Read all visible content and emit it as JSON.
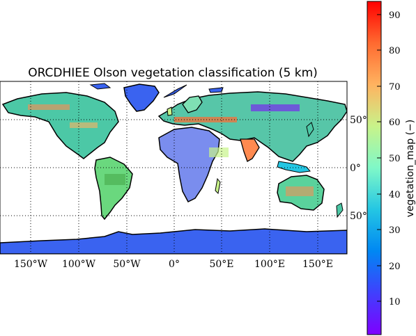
{
  "title": "ORCDHIEE Olson vegetation classification (5 km)",
  "map": {
    "projection": "cylindrical",
    "lon_range": [
      -180,
      180
    ],
    "lat_range": [
      -90,
      90
    ],
    "ocean_color": "#ffffff",
    "coastline_color": "#000000",
    "ice_color": "#3a63f0",
    "lon_ticks": [
      {
        "value": -150,
        "label": "150°W"
      },
      {
        "value": -100,
        "label": "100°W"
      },
      {
        "value": -50,
        "label": "50°W"
      },
      {
        "value": 0,
        "label": "0°"
      },
      {
        "value": 50,
        "label": "50°E"
      },
      {
        "value": 100,
        "label": "100°E"
      },
      {
        "value": 150,
        "label": "150°E"
      }
    ],
    "lat_ticks": [
      {
        "value": 50,
        "label": "50°"
      },
      {
        "value": 0,
        "label": "0°"
      },
      {
        "value": -50,
        "label": "50°"
      }
    ],
    "grid": "dotted"
  },
  "colorbar": {
    "label": "vegetation_map (−)",
    "range": [
      1,
      94
    ],
    "colormap": "rainbow",
    "ticks": [
      {
        "value": 10,
        "label": "10"
      },
      {
        "value": 20,
        "label": "20"
      },
      {
        "value": 30,
        "label": "30"
      },
      {
        "value": 40,
        "label": "40"
      },
      {
        "value": 50,
        "label": "50"
      },
      {
        "value": 60,
        "label": "60"
      },
      {
        "value": 70,
        "label": "70"
      },
      {
        "value": 80,
        "label": "80"
      },
      {
        "value": 90,
        "label": "90"
      }
    ]
  }
}
